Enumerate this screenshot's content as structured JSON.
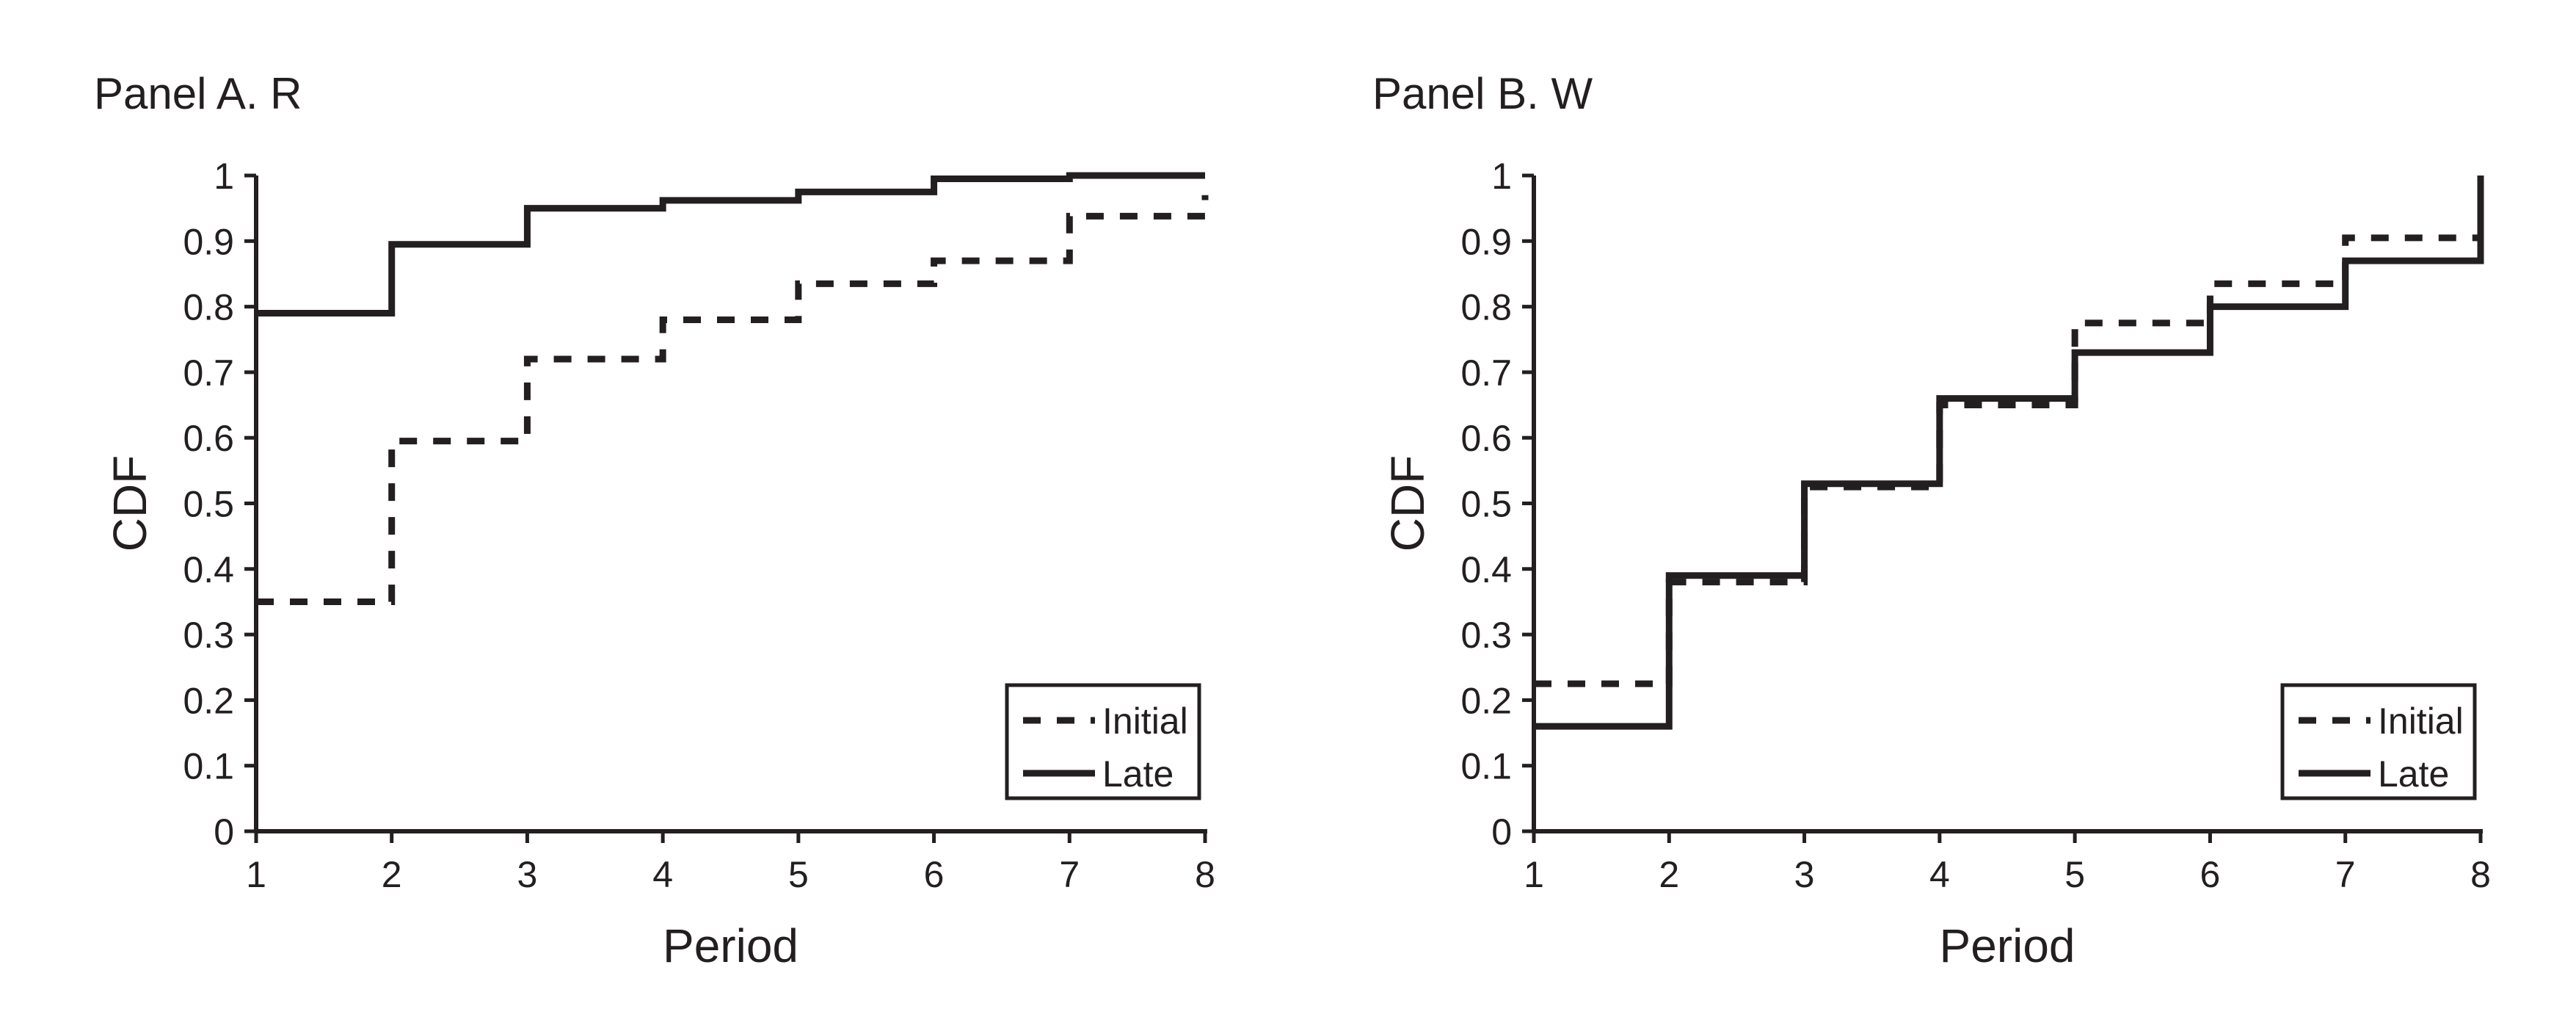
{
  "chart_data": [
    {
      "type": "line",
      "step": true,
      "title": "Panel A. R",
      "xlabel": "Period",
      "ylabel": "CDF",
      "xlim": [
        1,
        8
      ],
      "ylim": [
        0,
        1
      ],
      "xticks": [
        "1",
        "2",
        "3",
        "4",
        "5",
        "6",
        "7",
        "8"
      ],
      "yticks": [
        "0",
        "0.1",
        "0.2",
        "0.3",
        "0.4",
        "0.5",
        "0.6",
        "0.7",
        "0.8",
        "0.9",
        "1"
      ],
      "legend": {
        "placement": "bottom-right",
        "entries": [
          "Initial",
          "Late"
        ]
      },
      "x": [
        1,
        2,
        3,
        4,
        5,
        6,
        7,
        8
      ],
      "series": [
        {
          "name": "Initial",
          "style": "dashed",
          "values": [
            0.35,
            0.595,
            0.72,
            0.78,
            0.835,
            0.87,
            0.938,
            0.97
          ]
        },
        {
          "name": "Late",
          "style": "solid",
          "values": [
            0.79,
            0.895,
            0.95,
            0.962,
            0.975,
            0.995,
            1.0,
            1.0
          ]
        }
      ]
    },
    {
      "type": "line",
      "step": true,
      "title": "Panel B. W",
      "xlabel": "Period",
      "ylabel": "CDF",
      "xlim": [
        1,
        8
      ],
      "ylim": [
        0,
        1
      ],
      "xticks": [
        "1",
        "2",
        "3",
        "4",
        "5",
        "6",
        "7",
        "8"
      ],
      "yticks": [
        "0",
        "0.1",
        "0.2",
        "0.3",
        "0.4",
        "0.5",
        "0.6",
        "0.7",
        "0.8",
        "0.9",
        "1"
      ],
      "legend": {
        "placement": "bottom-right",
        "entries": [
          "Initial",
          "Late"
        ]
      },
      "x": [
        1,
        2,
        3,
        4,
        5,
        6,
        7,
        8
      ],
      "series": [
        {
          "name": "Initial",
          "style": "dashed",
          "values": [
            0.225,
            0.38,
            0.525,
            0.65,
            0.775,
            0.835,
            0.905,
            0.905
          ]
        },
        {
          "name": "Late",
          "style": "solid",
          "values": [
            0.16,
            0.39,
            0.53,
            0.66,
            0.73,
            0.8,
            0.87,
            1.0
          ]
        }
      ]
    }
  ]
}
